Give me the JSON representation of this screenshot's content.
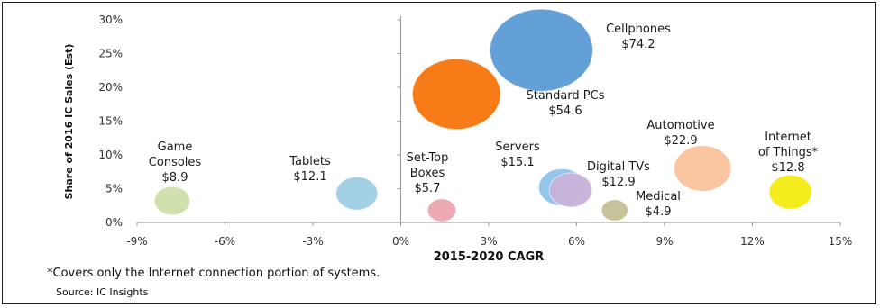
{
  "footnote": "*Covers only the Internet connection portion of systems.",
  "source": "Source: IC Insights",
  "chart_data": {
    "type": "bubble",
    "xlabel": "2015-2020 CAGR",
    "ylabel": "Share of 2016 IC Sales (Est)",
    "xlim": [
      -9,
      15
    ],
    "ylim": [
      0,
      30
    ],
    "x_ticks": [
      "-9%",
      "-6%",
      "-3%",
      "0%",
      "3%",
      "6%",
      "9%",
      "12%",
      "15%"
    ],
    "y_ticks": [
      "0%",
      "5%",
      "10%",
      "15%",
      "20%",
      "25%",
      "30%"
    ],
    "grid": false,
    "series": [
      {
        "label": [
          "Cellphones",
          "$74.2"
        ],
        "x": 4.8,
        "y": 25.5,
        "value": 74.2,
        "color": "#5b9bd5"
      },
      {
        "label": [
          "Standard PCs",
          "$54.6"
        ],
        "x": 1.9,
        "y": 19.0,
        "value": 54.6,
        "color": "#f7760c"
      },
      {
        "label": [
          "Automotive",
          "$22.9"
        ],
        "x": 10.3,
        "y": 8.0,
        "value": 22.9,
        "color": "#f9c49d"
      },
      {
        "label": [
          "Internet",
          "of Things*",
          "$12.8"
        ],
        "x": 13.3,
        "y": 4.5,
        "value": 12.8,
        "color": "#f5ec13"
      },
      {
        "label": [
          "Servers",
          "$15.1"
        ],
        "x": 5.5,
        "y": 5.2,
        "value": 15.1,
        "color": "#8fc3ea"
      },
      {
        "label": [
          "Digital TVs",
          "$12.9"
        ],
        "x": 5.8,
        "y": 4.8,
        "value": 12.9,
        "color": "#c9b2da"
      },
      {
        "label": [
          "Medical",
          "$4.9"
        ],
        "x": 7.3,
        "y": 1.8,
        "value": 4.9,
        "color": "#c4bf94"
      },
      {
        "label": [
          "Set-Top",
          "Boxes",
          "$5.7"
        ],
        "x": 1.4,
        "y": 1.8,
        "value": 5.7,
        "color": "#eda5ae"
      },
      {
        "label": [
          "Tablets",
          "$12.1"
        ],
        "x": -1.5,
        "y": 4.3,
        "value": 12.1,
        "color": "#9ecfe4"
      },
      {
        "label": [
          "Game",
          "Consoles",
          "$8.9"
        ],
        "x": -7.8,
        "y": 3.2,
        "value": 8.9,
        "color": "#cfe0a9"
      }
    ]
  }
}
